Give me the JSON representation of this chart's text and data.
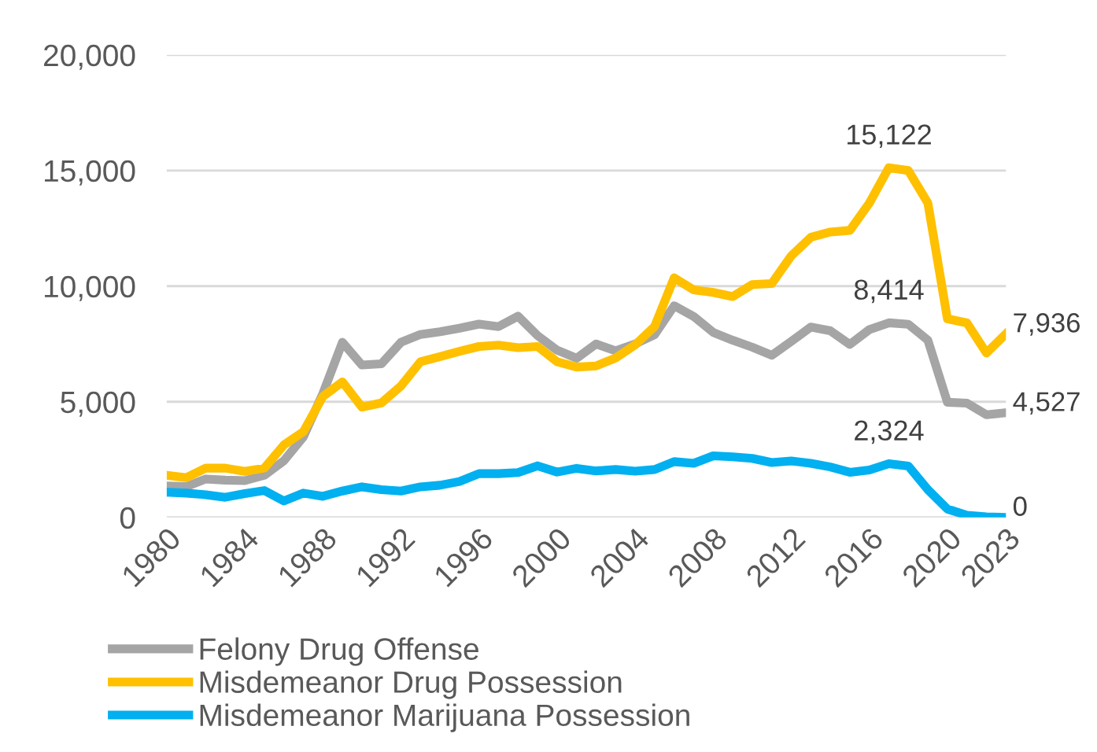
{
  "chart_data": {
    "type": "line",
    "categories": [
      "1980",
      null,
      null,
      null,
      "1984",
      null,
      null,
      null,
      "1988",
      null,
      null,
      null,
      "1992",
      null,
      null,
      null,
      "1996",
      null,
      null,
      null,
      "2000",
      null,
      null,
      null,
      "2004",
      null,
      null,
      null,
      "2008",
      null,
      null,
      null,
      "2012",
      null,
      null,
      null,
      "2016",
      null,
      null,
      null,
      "2020",
      null,
      null,
      "2023"
    ],
    "series": [
      {
        "name": "Felony Drug Offense",
        "color": "#a5a5a5",
        "values": [
          1360,
          1330,
          1660,
          1610,
          1590,
          1820,
          2450,
          3480,
          5360,
          7570,
          6590,
          6640,
          7570,
          7910,
          8030,
          8180,
          8360,
          8250,
          8700,
          7860,
          7230,
          6880,
          7500,
          7200,
          7500,
          7900,
          9150,
          8690,
          8000,
          7660,
          7360,
          7010,
          7610,
          8230,
          8070,
          7480,
          8120,
          8414,
          8350,
          7660,
          4980,
          4940,
          4440,
          4527
        ],
        "value_labels": [
          null,
          null,
          null,
          null,
          null,
          null,
          null,
          null,
          null,
          null,
          null,
          null,
          null,
          null,
          null,
          null,
          null,
          null,
          null,
          null,
          null,
          null,
          null,
          null,
          null,
          null,
          null,
          null,
          null,
          null,
          null,
          null,
          null,
          null,
          null,
          null,
          null,
          "8,414",
          null,
          null,
          null,
          null,
          null,
          "4,527"
        ]
      },
      {
        "name": "Misdemeanor Drug Possession",
        "color": "#ffc000",
        "values": [
          1820,
          1720,
          2130,
          2130,
          1990,
          2130,
          3130,
          3700,
          5230,
          5860,
          4770,
          4950,
          5680,
          6730,
          6950,
          7180,
          7390,
          7450,
          7340,
          7390,
          6730,
          6500,
          6550,
          6890,
          7460,
          8260,
          10360,
          9840,
          9730,
          9550,
          10070,
          10110,
          11310,
          12110,
          12340,
          12410,
          13590,
          15122,
          15000,
          13590,
          8590,
          8410,
          7110,
          7936
        ],
        "value_labels": [
          null,
          null,
          null,
          null,
          null,
          null,
          null,
          null,
          null,
          null,
          null,
          null,
          null,
          null,
          null,
          null,
          null,
          null,
          null,
          null,
          null,
          null,
          null,
          null,
          null,
          null,
          null,
          null,
          null,
          null,
          null,
          null,
          null,
          null,
          null,
          null,
          null,
          "15,122",
          null,
          null,
          null,
          null,
          null,
          "7,936"
        ]
      },
      {
        "name": "Misdemeanor Marijuana Possession",
        "color": "#00b0f0",
        "values": [
          1090,
          1050,
          980,
          870,
          1030,
          1160,
          710,
          1050,
          910,
          1140,
          1320,
          1200,
          1140,
          1320,
          1390,
          1550,
          1890,
          1890,
          1940,
          2230,
          1960,
          2120,
          2010,
          2070,
          2000,
          2070,
          2410,
          2340,
          2660,
          2620,
          2550,
          2370,
          2440,
          2340,
          2180,
          1950,
          2050,
          2324,
          2220,
          1200,
          360,
          90,
          20,
          0
        ],
        "value_labels": [
          null,
          null,
          null,
          null,
          null,
          null,
          null,
          null,
          null,
          null,
          null,
          null,
          null,
          null,
          null,
          null,
          null,
          null,
          null,
          null,
          null,
          null,
          null,
          null,
          null,
          null,
          null,
          null,
          null,
          null,
          null,
          null,
          null,
          null,
          null,
          null,
          null,
          "2,324",
          null,
          null,
          null,
          null,
          null,
          "0"
        ]
      }
    ],
    "ylim": [
      0,
      20000
    ],
    "yticks": [
      {
        "value": 0,
        "label": "0"
      },
      {
        "value": 5000,
        "label": "5,000"
      },
      {
        "value": 10000,
        "label": "10,000"
      },
      {
        "value": 15000,
        "label": "15,000"
      },
      {
        "value": 20000,
        "label": "20,000"
      }
    ],
    "grid": "y",
    "legend": "bottom",
    "marker": "none",
    "line_style": "solid"
  }
}
